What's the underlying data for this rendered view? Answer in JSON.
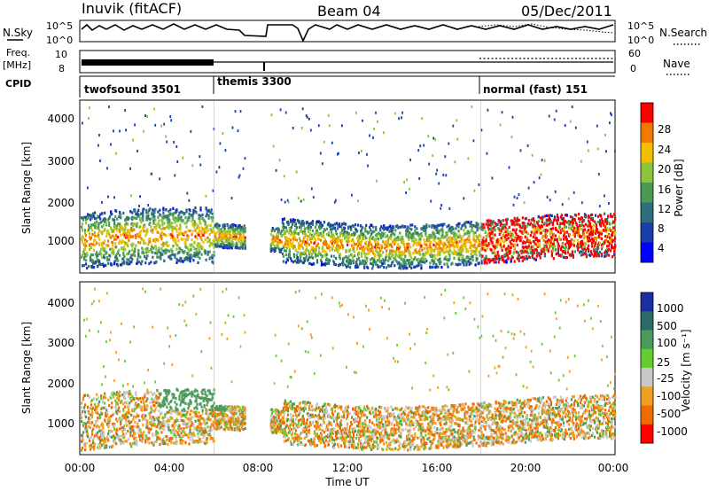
{
  "header": {
    "station": "Inuvik (fitACF)",
    "beam": "Beam 04",
    "date": "05/Dec/2011"
  },
  "noise_panel": {
    "left_label": "N.Sky",
    "left_ticks": [
      "10^5",
      "10^0"
    ],
    "right_ticks": [
      "10^5",
      "10^0"
    ],
    "right_label": "N.Search"
  },
  "freq_panel": {
    "left_label_1": "Freq.",
    "left_label_2": "[MHz]",
    "left_ticks": [
      "10",
      "8"
    ],
    "right_ticks": [
      "60",
      "0"
    ],
    "right_label": "Nave"
  },
  "cpid_panel": {
    "label": "CPID",
    "modes": [
      {
        "name": "twofsound 3501",
        "start_hour": 0
      },
      {
        "name": "themis 3300",
        "start_hour": 6
      },
      {
        "name": "normal (fast) 151",
        "start_hour": 18
      }
    ]
  },
  "panels": [
    {
      "id": "power",
      "ylabel": "Slant Range [km]",
      "yticks": [
        "4000",
        "3000",
        "2000",
        "1000"
      ],
      "colorbar_label": "Power [dB]",
      "colorbar_ticks": [
        "28",
        "24",
        "20",
        "16",
        "12",
        "8",
        "4"
      ]
    },
    {
      "id": "velocity",
      "ylabel": "Slant Range [km]",
      "yticks": [
        "4000",
        "3000",
        "2000",
        "1000"
      ],
      "colorbar_label": "Velocity [m s⁻¹]",
      "colorbar_ticks": [
        "1000",
        "500",
        "100",
        "25",
        "-25",
        "-100",
        "-500",
        "-1000"
      ]
    }
  ],
  "x_axis": {
    "label": "Time UT",
    "ticks": [
      "00:00",
      "04:00",
      "08:00",
      "12:00",
      "16:00",
      "20:00",
      "00:00"
    ]
  },
  "colors": {
    "power_scale": [
      "#0000ff",
      "#1a3fa8",
      "#2f6e7c",
      "#4a9a56",
      "#8cc43c",
      "#f0c000",
      "#f07a00",
      "#ff0000"
    ],
    "velocity_scale": [
      "#1a2fa0",
      "#2a6a6a",
      "#4a9a5a",
      "#66cc33",
      "#c8c8c8",
      "#f0a020",
      "#f06a00",
      "#ff0000"
    ]
  },
  "chart_data": {
    "type": "heatmap",
    "title": "Inuvik (fitACF)  Beam 04  05/Dec/2011",
    "xlabel": "Time UT",
    "ylabel": "Slant Range [km]",
    "x_range_hours": [
      0,
      24
    ],
    "y_range_km": [
      180,
      4500
    ],
    "cpid_periods": [
      {
        "mode": "twofsound 3501",
        "start_hour": 0,
        "end_hour": 6
      },
      {
        "mode": "themis 3300",
        "start_hour": 6,
        "end_hour": 18
      },
      {
        "mode": "normal (fast) 151",
        "start_hour": 18,
        "end_hour": 24
      }
    ],
    "data_gaps_hours": [
      [
        7.4,
        8.5
      ]
    ],
    "series": [
      {
        "name": "Power [dB]",
        "scale_min": 0,
        "scale_max": 32
      },
      {
        "name": "Velocity [m s-1]",
        "scale_min": -1000,
        "scale_max": 1000
      }
    ]
  }
}
